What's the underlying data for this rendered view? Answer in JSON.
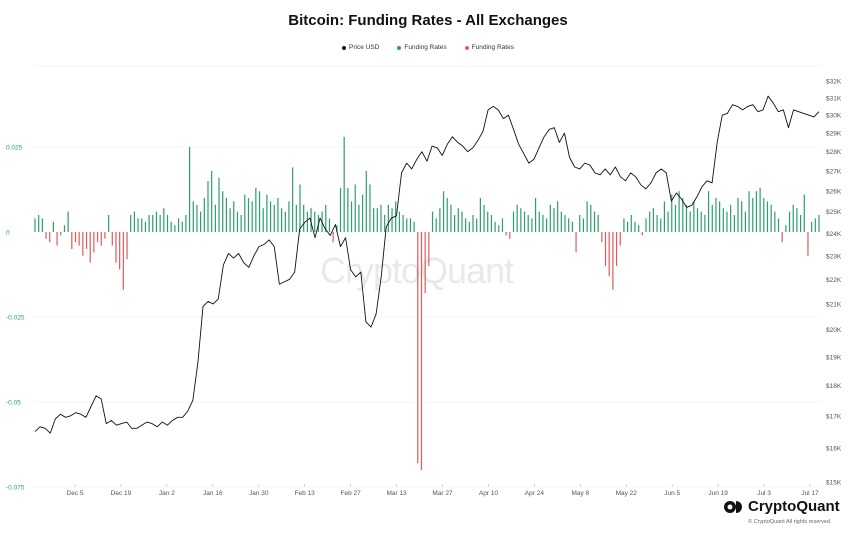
{
  "title": "Bitcoin: Funding Rates - All Exchanges",
  "legend": [
    {
      "label": "Price USD",
      "color": "#111111"
    },
    {
      "label": "Funding Rates",
      "color": "#2e9e6e"
    },
    {
      "label": "Funding Rates",
      "color": "#e05a5a"
    }
  ],
  "watermark": "CryptoQuant",
  "brand": {
    "name": "CryptoQuant",
    "copyright": "© CryptoQuant All rights reserved."
  },
  "colors": {
    "positive": "#2e9e6e",
    "negative": "#e05a5a",
    "price": "#111111",
    "grid": "#ececec",
    "left_axis": "#2e9e6e",
    "right_axis": "#555555"
  },
  "chart_data": {
    "type": "bar+line",
    "title": "Bitcoin: Funding Rates - All Exchanges",
    "x_tick_labels": [
      "Dec 5",
      "Dec 19",
      "Jan 2",
      "Jan 16",
      "Jan 30",
      "Feb 13",
      "Feb 27",
      "Mar 13",
      "Mar 27",
      "Apr 10",
      "Apr 24",
      "May 8",
      "May 22",
      "Jun 5",
      "Jun 19",
      "Jul 3",
      "Jul 17"
    ],
    "left_axis": {
      "ticks": [
        "0.025",
        "0",
        "-0.025",
        "-0.05",
        "-0.075"
      ],
      "values": [
        0.025,
        0,
        -0.025,
        -0.05,
        -0.075
      ],
      "ylim": [
        -0.075,
        0.048
      ]
    },
    "right_axis": {
      "ticks": [
        "$32K",
        "$31K",
        "$30K",
        "$29K",
        "$28K",
        "$27K",
        "$26K",
        "$25K",
        "$24K",
        "$23K",
        "$22K",
        "$21K",
        "$20K",
        "$19K",
        "$18K",
        "$17K",
        "$16K",
        "$15K"
      ],
      "scale": "log",
      "ylim": [
        15000,
        32000
      ]
    },
    "funding_rates": [
      0.004,
      0.005,
      0.004,
      -0.002,
      -0.003,
      0.003,
      -0.004,
      -0.001,
      0.002,
      0.006,
      -0.005,
      -0.003,
      -0.004,
      -0.007,
      -0.005,
      -0.009,
      -0.006,
      -0.003,
      -0.004,
      -0.002,
      0.005,
      -0.004,
      -0.009,
      -0.011,
      -0.017,
      -0.008,
      0.005,
      0.006,
      0.004,
      0.004,
      0.003,
      0.005,
      0.005,
      0.006,
      0.005,
      0.007,
      0.005,
      0.003,
      0.002,
      0.004,
      0.003,
      0.005,
      0.025,
      0.009,
      0.008,
      0.006,
      0.01,
      0.015,
      0.018,
      0.008,
      0.016,
      0.012,
      0.01,
      0.007,
      0.009,
      0.006,
      0.005,
      0.011,
      0.01,
      0.009,
      0.013,
      0.012,
      0.007,
      0.011,
      0.009,
      0.008,
      0.01,
      0.007,
      0.006,
      0.009,
      0.019,
      0.008,
      0.014,
      0.008,
      0.006,
      0.007,
      0.006,
      0.005,
      0.006,
      0.008,
      0.004,
      -0.003,
      0.002,
      0.013,
      0.028,
      0.013,
      0.009,
      0.014,
      0.008,
      0.011,
      0.018,
      0.014,
      0.007,
      0.007,
      0.008,
      0.005,
      0.008,
      0.007,
      0.009,
      0.006,
      0.005,
      0.004,
      0.004,
      0.003,
      -0.068,
      -0.07,
      -0.018,
      -0.01,
      0.006,
      0.004,
      0.007,
      0.012,
      0.01,
      0.008,
      0.005,
      0.007,
      0.006,
      0.004,
      0.003,
      0.005,
      0.004,
      0.01,
      0.008,
      0.006,
      0.005,
      0.003,
      0.002,
      0.004,
      -0.001,
      -0.002,
      0.006,
      0.008,
      0.007,
      0.006,
      0.005,
      0.004,
      0.01,
      0.006,
      0.005,
      0.004,
      0.008,
      0.007,
      0.009,
      0.006,
      0.005,
      0.004,
      0.003,
      -0.006,
      0.005,
      0.004,
      0.009,
      0.008,
      0.006,
      0.005,
      -0.003,
      -0.01,
      -0.013,
      -0.017,
      -0.01,
      -0.004,
      0.004,
      0.003,
      0.005,
      0.003,
      0.002,
      -0.001,
      0.004,
      0.006,
      0.007,
      0.005,
      0.004,
      0.009,
      0.006,
      0.011,
      0.008,
      0.012,
      0.01,
      0.008,
      0.006,
      0.009,
      0.007,
      0.006,
      0.005,
      0.012,
      0.008,
      0.01,
      0.009,
      0.007,
      0.006,
      0.008,
      0.005,
      0.01,
      0.009,
      0.006,
      0.012,
      0.01,
      0.012,
      0.013,
      0.01,
      0.009,
      0.008,
      0.006,
      0.004,
      -0.003,
      0.002,
      0.006,
      0.008,
      0.007,
      0.005,
      0.011,
      -0.007,
      0.003,
      0.004,
      0.005
    ],
    "price_usd": [
      16500,
      16650,
      16600,
      16450,
      16900,
      17050,
      16950,
      17000,
      17100,
      17050,
      16950,
      17300,
      17650,
      17550,
      16750,
      16850,
      16700,
      16750,
      16800,
      16600,
      16600,
      16700,
      16800,
      16750,
      16650,
      16800,
      16700,
      16850,
      16950,
      16950,
      17150,
      17500,
      18800,
      20900,
      21100,
      21000,
      21200,
      22600,
      23100,
      22900,
      23100,
      22700,
      22500,
      23000,
      23400,
      23500,
      23700,
      23400,
      21800,
      21900,
      22000,
      22300,
      24200,
      24500,
      24700,
      23800,
      24700,
      24200,
      23900,
      24400,
      23400,
      23800,
      22400,
      22100,
      22300,
      20300,
      20100,
      20600,
      22100,
      24300,
      24700,
      24800,
      26900,
      27400,
      27100,
      27600,
      28000,
      27500,
      28300,
      28200,
      27800,
      28400,
      28800,
      28500,
      28300,
      28000,
      28200,
      28600,
      29100,
      30300,
      30500,
      30300,
      29800,
      30000,
      29200,
      28400,
      27900,
      27400,
      27600,
      28200,
      28800,
      29200,
      29300,
      28500,
      29000,
      27700,
      27200,
      27100,
      27400,
      27300,
      26900,
      26800,
      27100,
      26800,
      27200,
      26700,
      26500,
      26900,
      26700,
      26300,
      26100,
      26400,
      26900,
      27100,
      26900,
      25500,
      25900,
      25600,
      25200,
      25300,
      25700,
      26200,
      26500,
      26400,
      28500,
      30000,
      30100,
      30600,
      30500,
      30300,
      30500,
      30600,
      30200,
      30300,
      31100,
      30700,
      30200,
      30300,
      29300,
      30300,
      30200,
      30100,
      30000,
      29900,
      30200
    ],
    "bar_colors": {
      "positive": "#2e9e6e",
      "negative": "#e05a5a"
    }
  }
}
